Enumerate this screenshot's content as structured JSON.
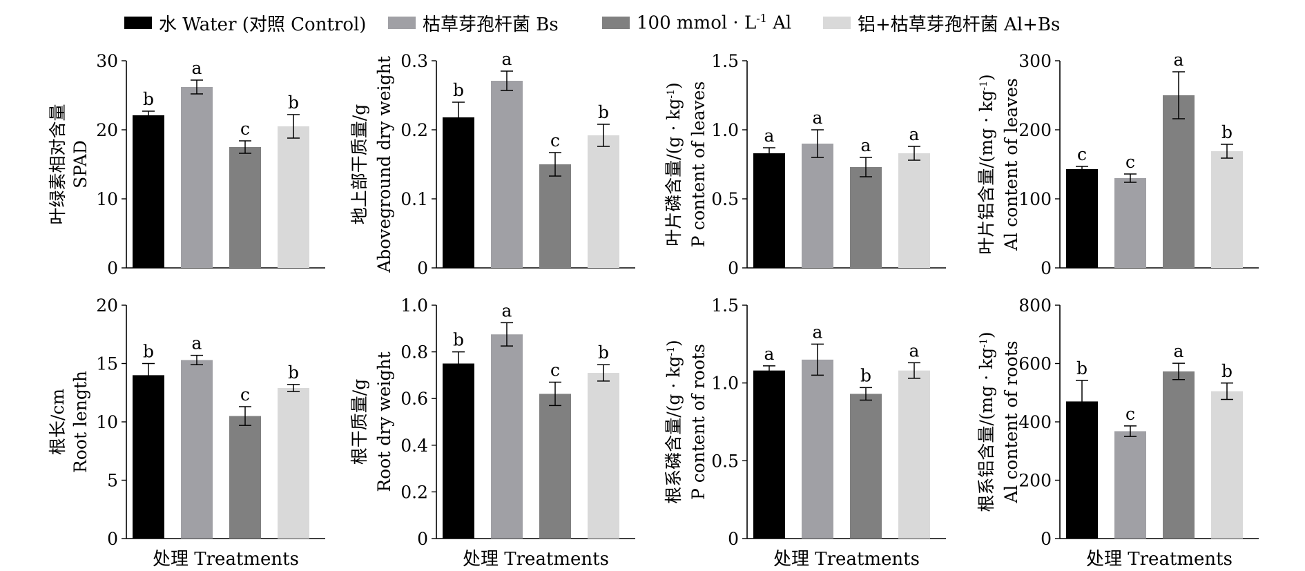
{
  "legend": [
    {
      "label": "水 Water (对照 Control)",
      "color": "#000000"
    },
    {
      "label": "枯草芽孢杆菌 Bs",
      "color": "#a0a0a5"
    },
    {
      "label": "100 mmol · L-1 Al",
      "color": "#808080"
    },
    {
      "label": "铝+枯草芽孢杆菌 Al+Bs",
      "color": "#d9d9d9"
    }
  ],
  "chart_data": [
    {
      "type": "bar",
      "categories": [
        "水 Water (对照 Control)",
        "枯草芽孢杆菌 Bs",
        "100 mmol · L-1 Al",
        "铝+枯草芽孢杆菌 Al+Bs"
      ],
      "values": [
        22.1,
        26.2,
        17.5,
        20.5
      ],
      "errors": [
        0.6,
        1.0,
        0.9,
        1.7
      ],
      "letters": [
        "b",
        "a",
        "c",
        "b"
      ],
      "ylabel": [
        "叶绿素相对含量",
        "SPAD"
      ],
      "xlabel": "",
      "ylim": [
        0,
        30
      ],
      "yticks": [
        "0",
        "10",
        "20",
        "30"
      ]
    },
    {
      "type": "bar",
      "categories": [
        "水 Water (对照 Control)",
        "枯草芽孢杆菌 Bs",
        "100 mmol · L-1 Al",
        "铝+枯草芽孢杆菌 Al+Bs"
      ],
      "values": [
        0.218,
        0.271,
        0.15,
        0.192
      ],
      "errors": [
        0.022,
        0.014,
        0.017,
        0.016
      ],
      "letters": [
        "b",
        "a",
        "c",
        "b"
      ],
      "ylabel": [
        "地上部干质量/g",
        "Aboveground dry weight"
      ],
      "xlabel": "",
      "ylim": [
        0,
        0.3
      ],
      "yticks": [
        "0",
        "0.1",
        "0.2",
        "0.3"
      ]
    },
    {
      "type": "bar",
      "categories": [
        "水 Water (对照 Control)",
        "枯草芽孢杆菌 Bs",
        "100 mmol · L-1 Al",
        "铝+枯草芽孢杆菌 Al+Bs"
      ],
      "values": [
        0.83,
        0.9,
        0.73,
        0.83
      ],
      "errors": [
        0.04,
        0.1,
        0.07,
        0.05
      ],
      "letters": [
        "a",
        "a",
        "a",
        "a"
      ],
      "ylabel": [
        "叶片磷含量/(g · kg-1)",
        "P content of leaves"
      ],
      "xlabel": "",
      "ylim": [
        0,
        1.5
      ],
      "yticks": [
        "0",
        "0.5",
        "1.0",
        "1.5"
      ]
    },
    {
      "type": "bar",
      "categories": [
        "水 Water (对照 Control)",
        "枯草芽孢杆菌 Bs",
        "100 mmol · L-1 Al",
        "铝+枯草芽孢杆菌 Al+Bs"
      ],
      "values": [
        143,
        130,
        250,
        169
      ],
      "errors": [
        4,
        6,
        34,
        10
      ],
      "letters": [
        "c",
        "c",
        "a",
        "b"
      ],
      "ylabel": [
        "叶片铝含量/(mg · kg-1)",
        "Al content of leaves"
      ],
      "xlabel": "",
      "ylim": [
        0,
        300
      ],
      "yticks": [
        "0",
        "100",
        "200",
        "300"
      ]
    },
    {
      "type": "bar",
      "categories": [
        "水 Water (对照 Control)",
        "枯草芽孢杆菌 Bs",
        "100 mmol · L-1 Al",
        "铝+枯草芽孢杆菌 Al+Bs"
      ],
      "values": [
        14.0,
        15.3,
        10.5,
        12.9
      ],
      "errors": [
        1.0,
        0.4,
        0.8,
        0.3
      ],
      "letters": [
        "b",
        "a",
        "c",
        "b"
      ],
      "ylabel": [
        "根长/cm",
        "Root length"
      ],
      "xlabel": "处理 Treatments",
      "ylim": [
        0,
        20
      ],
      "yticks": [
        "0",
        "5",
        "10",
        "15",
        "20"
      ]
    },
    {
      "type": "bar",
      "categories": [
        "水 Water (对照 Control)",
        "枯草芽孢杆菌 Bs",
        "100 mmol · L-1 Al",
        "铝+枯草芽孢杆菌 Al+Bs"
      ],
      "values": [
        0.75,
        0.875,
        0.62,
        0.71
      ],
      "errors": [
        0.05,
        0.05,
        0.05,
        0.035
      ],
      "letters": [
        "b",
        "a",
        "c",
        "b"
      ],
      "ylabel": [
        "根干质量/g",
        "Root dry weight"
      ],
      "xlabel": "处理 Treatments",
      "ylim": [
        0,
        1.0
      ],
      "yticks": [
        "0",
        "0.2",
        "0.4",
        "0.6",
        "0.8",
        "1.0"
      ]
    },
    {
      "type": "bar",
      "categories": [
        "水 Water (对照 Control)",
        "枯草芽孢杆菌 Bs",
        "100 mmol · L-1 Al",
        "铝+枯草芽孢杆菌 Al+Bs"
      ],
      "values": [
        1.08,
        1.15,
        0.93,
        1.08
      ],
      "errors": [
        0.03,
        0.1,
        0.04,
        0.05
      ],
      "letters": [
        "a",
        "a",
        "b",
        "a"
      ],
      "ylabel": [
        "根系磷含量/(g · kg-1)",
        "P content of roots"
      ],
      "xlabel": "处理 Treatments",
      "ylim": [
        0,
        1.5
      ],
      "yticks": [
        "0",
        "0.5",
        "1.0",
        "1.5"
      ]
    },
    {
      "type": "bar",
      "categories": [
        "水 Water (对照 Control)",
        "枯草芽孢杆菌 Bs",
        "100 mmol · L-1 Al",
        "铝+枯草芽孢杆菌 Al+Bs"
      ],
      "values": [
        470,
        368,
        573,
        505
      ],
      "errors": [
        72,
        18,
        28,
        28
      ],
      "letters": [
        "b",
        "c",
        "a",
        "b"
      ],
      "ylabel": [
        "根系铝含量/(mg · kg-1)",
        "Al content of roots"
      ],
      "xlabel": "处理 Treatments",
      "ylim": [
        0,
        800
      ],
      "yticks": [
        "0",
        "200",
        "400",
        "600",
        "800"
      ]
    }
  ]
}
